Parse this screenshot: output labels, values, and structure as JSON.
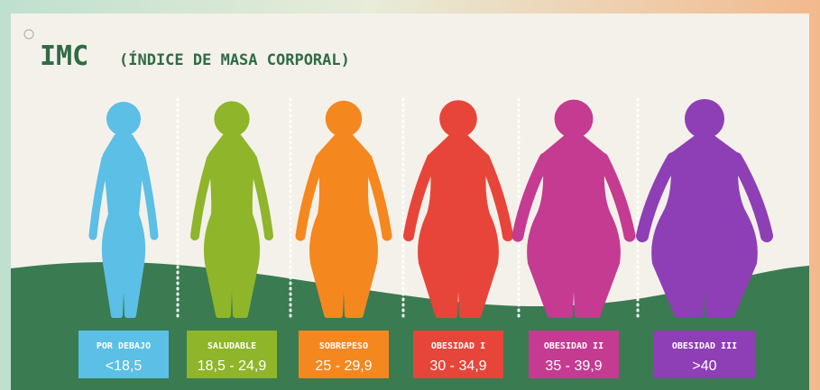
{
  "header": {
    "title_main": "IMC",
    "title_sub": "(ÍNDICE DE MASA CORPORAL)"
  },
  "categories": [
    {
      "label": "POR DEBAJO",
      "range": "<18,5",
      "color": "#5bbfe6"
    },
    {
      "label": "SALUDABLE",
      "range": "18,5 - 24,9",
      "color": "#8fb52a"
    },
    {
      "label": "SOBREPESO",
      "range": "25 - 29,9",
      "color": "#f5871f"
    },
    {
      "label": "OBESIDAD I",
      "range": "30 - 34,9",
      "color": "#e8453a"
    },
    {
      "label": "OBESIDAD II",
      "range": "35 - 39,9",
      "color": "#c43b91"
    },
    {
      "label": "OBESIDAD III",
      "range": ">40",
      "color": "#8e3fb5"
    }
  ]
}
